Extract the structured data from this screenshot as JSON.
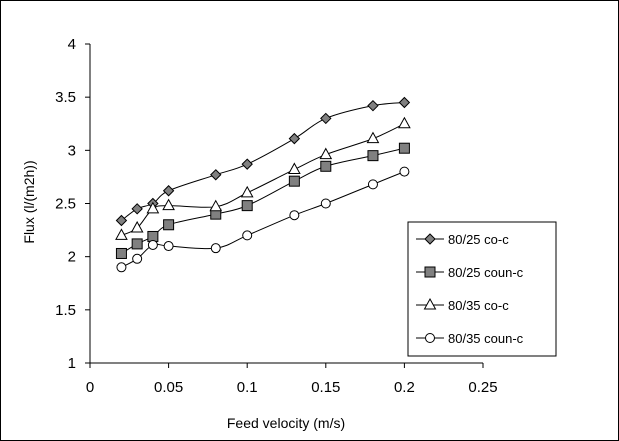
{
  "chart_data": {
    "type": "line",
    "title": "",
    "xlabel": "Feed velocity (m/s)",
    "ylabel": "Flux (l/(m2h))",
    "xlim": [
      0,
      0.25
    ],
    "ylim": [
      1,
      4
    ],
    "x_ticks": [
      "0",
      "0.05",
      "0.1",
      "0.15",
      "0.2",
      "0.25"
    ],
    "y_ticks": [
      "1",
      "1.5",
      "2",
      "2.5",
      "3",
      "3.5",
      "4"
    ],
    "grid": false,
    "legend_position": "bottom-right",
    "series": [
      {
        "name": "80/25 co-c",
        "marker": "diamond",
        "marker_fill": "#808080",
        "x": [
          0.02,
          0.03,
          0.04,
          0.05,
          0.08,
          0.1,
          0.13,
          0.15,
          0.18,
          0.2
        ],
        "y": [
          2.34,
          2.45,
          2.5,
          2.62,
          2.77,
          2.87,
          3.11,
          3.3,
          3.42,
          3.45
        ]
      },
      {
        "name": "80/25 coun-c",
        "marker": "square",
        "marker_fill": "#808080",
        "x": [
          0.02,
          0.03,
          0.04,
          0.05,
          0.08,
          0.1,
          0.13,
          0.15,
          0.18,
          0.2
        ],
        "y": [
          2.03,
          2.12,
          2.19,
          2.3,
          2.4,
          2.48,
          2.71,
          2.85,
          2.95,
          3.02
        ]
      },
      {
        "name": "80/35 co-c",
        "marker": "triangle",
        "marker_fill": "#ffffff",
        "x": [
          0.02,
          0.03,
          0.04,
          0.05,
          0.08,
          0.1,
          0.13,
          0.15,
          0.18,
          0.2
        ],
        "y": [
          2.2,
          2.27,
          2.45,
          2.48,
          2.47,
          2.6,
          2.82,
          2.96,
          3.11,
          3.25
        ]
      },
      {
        "name": "80/35 coun-c",
        "marker": "circle",
        "marker_fill": "#ffffff",
        "x": [
          0.02,
          0.03,
          0.04,
          0.05,
          0.08,
          0.1,
          0.13,
          0.15,
          0.18,
          0.2
        ],
        "y": [
          1.9,
          1.98,
          2.11,
          2.1,
          2.08,
          2.2,
          2.39,
          2.5,
          2.68,
          2.8
        ]
      }
    ]
  }
}
